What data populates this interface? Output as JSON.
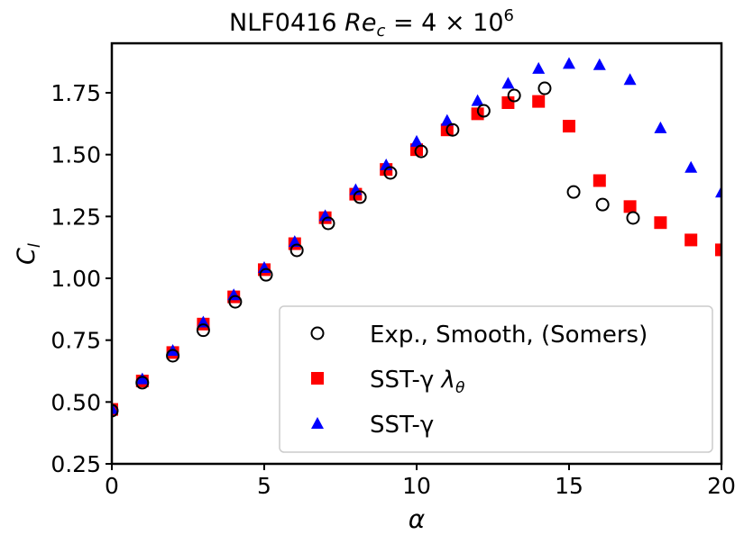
{
  "chart_data": {
    "type": "scatter",
    "title_main": "NLF0416 ",
    "title_math": "Re",
    "title_sub": "c",
    "title_rest": " = 4 × 10",
    "title_sup": "6",
    "xlabel": "α",
    "ylabel": "C",
    "ylabel_sub": "l",
    "xlim": [
      0,
      20
    ],
    "ylim": [
      0.25,
      1.95
    ],
    "xticks": [
      0,
      5,
      10,
      15,
      20
    ],
    "xtick_labels": [
      "0",
      "5",
      "10",
      "15",
      "20"
    ],
    "yticks": [
      0.25,
      0.5,
      0.75,
      1.0,
      1.25,
      1.5,
      1.75
    ],
    "ytick_labels": [
      "0.25",
      "0.50",
      "0.75",
      "1.00",
      "1.25",
      "1.50",
      "1.75"
    ],
    "grid": false,
    "legend_position": "lower-right",
    "series": [
      {
        "name": "Exp., Smooth, (Somers)",
        "marker": "open-circle",
        "color": "#000000",
        "x": [
          0,
          1.0,
          2.0,
          3.0,
          4.05,
          5.06,
          6.07,
          7.1,
          8.14,
          9.14,
          10.15,
          11.18,
          12.2,
          13.2,
          14.2,
          15.15,
          16.1,
          17.1
        ],
        "y": [
          0.465,
          0.578,
          0.687,
          0.79,
          0.905,
          1.014,
          1.113,
          1.222,
          1.328,
          1.426,
          1.513,
          1.6,
          1.677,
          1.739,
          1.768,
          1.349,
          1.298,
          1.244
        ]
      },
      {
        "name": "SST-γ λθ",
        "marker": "square",
        "color": "#ff0000",
        "x": [
          0,
          1,
          2,
          3,
          4,
          5,
          6,
          7,
          8,
          9,
          10,
          11,
          12,
          13,
          14,
          15,
          16,
          17,
          18,
          19,
          20
        ],
        "y": [
          0.47,
          0.585,
          0.7,
          0.815,
          0.925,
          1.035,
          1.14,
          1.245,
          1.34,
          1.44,
          1.52,
          1.6,
          1.665,
          1.71,
          1.715,
          1.615,
          1.395,
          1.29,
          1.225,
          1.155,
          1.115
        ]
      },
      {
        "name": "SST-γ",
        "marker": "triangle",
        "color": "#0000ff",
        "x": [
          0,
          1,
          2,
          3,
          4,
          5,
          6,
          7,
          8,
          9,
          10,
          11,
          12,
          13,
          14,
          15,
          16,
          17,
          18,
          19,
          20
        ],
        "y": [
          0.47,
          0.59,
          0.705,
          0.82,
          0.93,
          1.04,
          1.145,
          1.25,
          1.355,
          1.455,
          1.55,
          1.635,
          1.715,
          1.785,
          1.845,
          1.865,
          1.86,
          1.8,
          1.605,
          1.445,
          1.345
        ]
      }
    ],
    "legend": {
      "entries": [
        "Exp., Smooth, (Somers)",
        "SST-γ ",
        "SST-γ"
      ],
      "entry2_math": "λ",
      "entry2_sub": "θ"
    }
  }
}
